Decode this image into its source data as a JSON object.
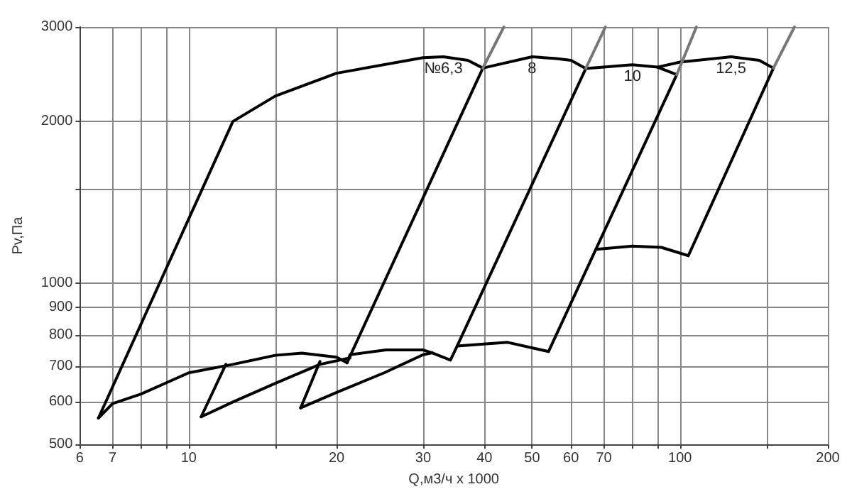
{
  "chart_data": {
    "type": "line",
    "xlabel": "Q,м3/ч x 1000",
    "ylabel": "Pv,Па",
    "log": "xy",
    "grid": true,
    "line_style": "solid",
    "xlim": [
      6,
      200
    ],
    "xticks": [
      6,
      7,
      {
        "value": 8,
        "label": null
      },
      {
        "value": 9,
        "label": null
      },
      10,
      {
        "value": 15,
        "label": null
      },
      20,
      30,
      40,
      50,
      60,
      70,
      {
        "value": 80,
        "label": null
      },
      {
        "value": 90,
        "label": null
      },
      100,
      {
        "value": 150,
        "label": null
      },
      200
    ],
    "ylim": [
      500,
      3000
    ],
    "yticks": [
      500,
      600,
      700,
      800,
      900,
      1000,
      {
        "value": 1500,
        "label": null
      },
      2000,
      3000
    ],
    "series": [
      {
        "name": "№6,3",
        "color": "#000000",
        "x": [
          6.55,
          12.3,
          15,
          20,
          30,
          33,
          37,
          39.7
        ],
        "values": [
          560,
          2000,
          2230,
          2460,
          2630,
          2640,
          2600,
          2515
        ]
      },
      {
        "color": "#000000",
        "x": [
          6.55,
          7,
          8,
          10,
          12.3,
          15,
          17,
          20,
          21
        ],
        "values": [
          560,
          596,
          621,
          680,
          705,
          733,
          740,
          727,
          710
        ]
      },
      {
        "color": "#000000",
        "x": [
          10.6,
          11.9
        ],
        "values": [
          563,
          705
        ]
      },
      {
        "color": "#000000",
        "x": [
          10.6,
          12.3,
          15,
          18.5,
          21.3
        ],
        "values": [
          563,
          600,
          650,
          705,
          725
        ]
      },
      {
        "color": "#000000",
        "x": [
          16.9,
          18.5
        ],
        "values": [
          585,
          714
        ]
      },
      {
        "color": "#000000",
        "x": [
          16.9,
          20,
          25,
          30,
          31.3
        ],
        "values": [
          585,
          625,
          680,
          735,
          741
        ]
      },
      {
        "color": "#000000",
        "x": [
          21,
          21.3,
          25.2,
          30,
          31.3,
          34.1,
          35.2,
          64.3
        ],
        "values": [
          710,
          735,
          750,
          750,
          741,
          718,
          763,
          2510
        ]
      },
      {
        "name": "8",
        "color": "#000000",
        "x": [
          21,
          39.7,
          50,
          56,
          60,
          64.3
        ],
        "values": [
          710,
          2515,
          2640,
          2620,
          2600,
          2510
        ]
      },
      {
        "color": "#000000",
        "x": [
          35.2,
          44.6,
          54
        ],
        "values": [
          763,
          775,
          745
        ]
      },
      {
        "color": "#000000",
        "x": [
          54,
          98.5
        ],
        "values": [
          745,
          2445
        ]
      },
      {
        "name": "10",
        "color": "#000000",
        "x": [
          64.3,
          80,
          90,
          98.5
        ],
        "values": [
          2510,
          2550,
          2525,
          2445
        ]
      },
      {
        "color": "#000000",
        "x": [
          67.6,
          80,
          91.6,
          104
        ],
        "values": [
          1155,
          1171,
          1165,
          1124
        ]
      },
      {
        "name": "12,5",
        "color": "#000000",
        "x": [
          90,
          100,
          127,
          145,
          155
        ],
        "values": [
          2525,
          2580,
          2640,
          2600,
          2515
        ]
      },
      {
        "color": "#000000",
        "x": [
          104,
          155
        ],
        "values": [
          1124,
          2515
        ]
      },
      {
        "color": "#777777",
        "x": [
          39.7,
          43.8
        ],
        "values": [
          2515,
          3000
        ]
      },
      {
        "color": "#777777",
        "x": [
          64.3,
          70.5
        ],
        "values": [
          2510,
          3000
        ]
      },
      {
        "color": "#777777",
        "x": [
          98.5,
          108
        ],
        "values": [
          2445,
          3000
        ]
      },
      {
        "color": "#777777",
        "x": [
          155,
          171
        ],
        "values": [
          2515,
          3000
        ]
      }
    ]
  }
}
